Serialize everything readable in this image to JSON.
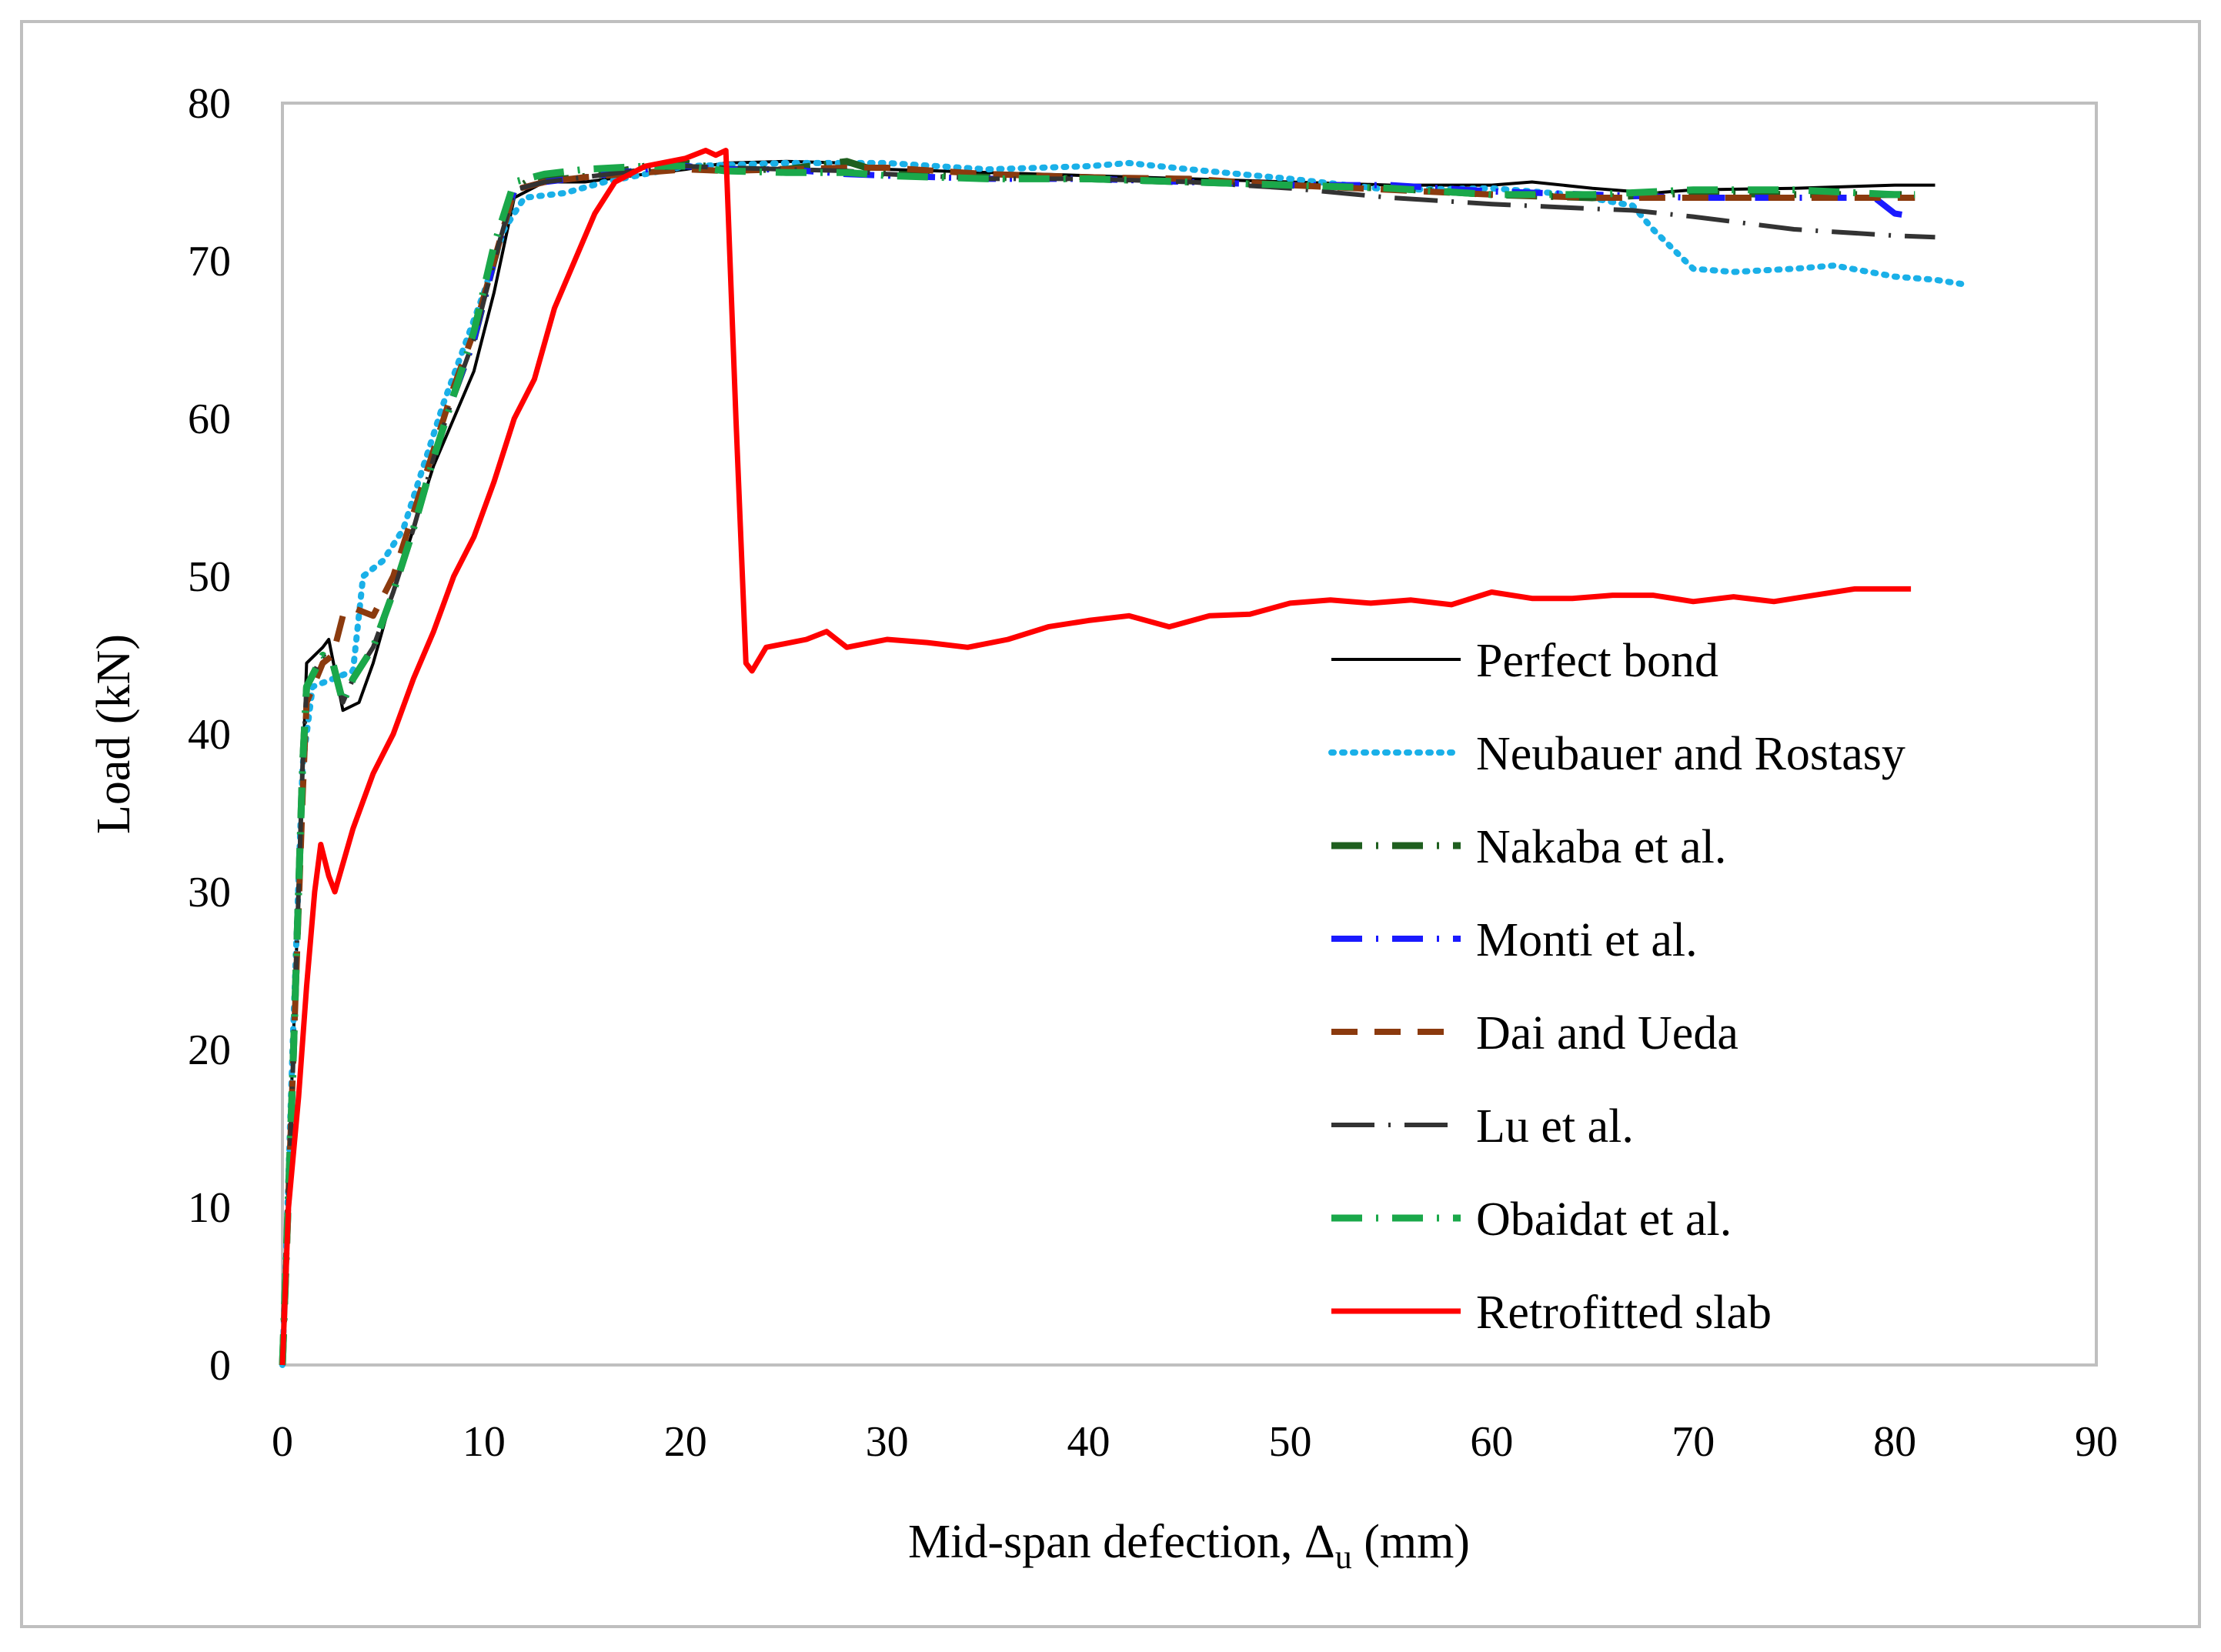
{
  "chart_data": {
    "type": "line",
    "title": "",
    "xlabel": "Mid-span defection, Δ",
    "xlabel_subscript": "u",
    "xlabel_unit": " (mm)",
    "ylabel": "Load (kN)",
    "xlim": [
      0,
      90
    ],
    "ylim": [
      0,
      80
    ],
    "x_ticks": [
      0,
      10,
      20,
      30,
      40,
      50,
      60,
      70,
      80,
      90
    ],
    "y_ticks": [
      0,
      10,
      20,
      30,
      40,
      50,
      60,
      70,
      80
    ],
    "grid": false,
    "legend_position": "right",
    "series": [
      {
        "name": "Perfect bond",
        "color": "#000000",
        "dash": "solid",
        "points": [
          [
            0,
            0
          ],
          [
            0.3,
            12
          ],
          [
            0.8,
            30
          ],
          [
            1.2,
            44.5
          ],
          [
            2,
            45.5
          ],
          [
            2.3,
            46
          ],
          [
            3,
            41.5
          ],
          [
            3.8,
            42
          ],
          [
            4.5,
            44.5
          ],
          [
            5.5,
            49
          ],
          [
            6.5,
            53
          ],
          [
            7.5,
            57
          ],
          [
            8.5,
            60
          ],
          [
            9.5,
            63
          ],
          [
            10.5,
            68
          ],
          [
            11.5,
            74
          ],
          [
            13,
            75
          ],
          [
            15,
            75
          ],
          [
            18,
            75.5
          ],
          [
            20,
            75.8
          ],
          [
            22,
            76.2
          ],
          [
            25,
            76.3
          ],
          [
            28,
            76.2
          ],
          [
            30,
            75.8
          ],
          [
            35,
            75.6
          ],
          [
            40,
            75.4
          ],
          [
            45,
            75.2
          ],
          [
            50,
            75
          ],
          [
            55,
            74.8
          ],
          [
            60,
            74.8
          ],
          [
            62,
            75
          ],
          [
            65,
            74.6
          ],
          [
            68,
            74.3
          ],
          [
            70,
            74.5
          ],
          [
            75,
            74.6
          ],
          [
            80,
            74.8
          ],
          [
            82,
            74.8
          ]
        ]
      },
      {
        "name": "Neubauer and Rostasy",
        "color": "#1ab0e8",
        "dash": "dotted",
        "points": [
          [
            0,
            0
          ],
          [
            0.5,
            20
          ],
          [
            1,
            38
          ],
          [
            1.5,
            43
          ],
          [
            2.5,
            43.5
          ],
          [
            3.5,
            44
          ],
          [
            4,
            50
          ],
          [
            5,
            51
          ],
          [
            6,
            53
          ],
          [
            7,
            57
          ],
          [
            8,
            61
          ],
          [
            9,
            64.5
          ],
          [
            10,
            68
          ],
          [
            11,
            72
          ],
          [
            12,
            74
          ],
          [
            14,
            74.3
          ],
          [
            16,
            75
          ],
          [
            20,
            76
          ],
          [
            25,
            76.2
          ],
          [
            30,
            76.2
          ],
          [
            35,
            75.8
          ],
          [
            40,
            76
          ],
          [
            42,
            76.2
          ],
          [
            45,
            75.8
          ],
          [
            50,
            75.2
          ],
          [
            55,
            74.5
          ],
          [
            60,
            74.6
          ],
          [
            64,
            74.2
          ],
          [
            67,
            73.5
          ],
          [
            68,
            72
          ],
          [
            70,
            69.5
          ],
          [
            72,
            69.3
          ],
          [
            75,
            69.5
          ],
          [
            77,
            69.7
          ],
          [
            80,
            69
          ],
          [
            82,
            68.8
          ],
          [
            83.5,
            68.5
          ]
        ]
      },
      {
        "name": "Nakaba et al.",
        "color": "#1f5f1f",
        "dash": "dashdot",
        "points": [
          [
            0,
            0
          ],
          [
            0.5,
            18
          ],
          [
            1,
            38
          ],
          [
            1.2,
            43
          ],
          [
            2,
            45
          ],
          [
            2.5,
            44.5
          ],
          [
            3,
            42
          ],
          [
            3.5,
            43.5
          ],
          [
            4.5,
            45.5
          ],
          [
            5.5,
            49
          ],
          [
            6.5,
            53
          ],
          [
            7.5,
            57.5
          ],
          [
            8.5,
            61.5
          ],
          [
            9.5,
            65
          ],
          [
            10.5,
            70
          ],
          [
            11.5,
            74.5
          ],
          [
            12.5,
            75.3
          ],
          [
            14,
            75.2
          ],
          [
            16,
            75.5
          ],
          [
            18,
            76
          ],
          [
            20,
            76.2
          ],
          [
            22,
            75.8
          ],
          [
            25,
            75.8
          ],
          [
            28,
            76.3
          ],
          [
            30,
            75.5
          ],
          [
            35,
            75.3
          ],
          [
            40,
            75.2
          ],
          [
            45,
            75
          ],
          [
            50,
            74.8
          ],
          [
            55,
            74.6
          ],
          [
            60,
            74.2
          ],
          [
            65,
            74
          ],
          [
            70,
            74.3
          ],
          [
            75,
            74.2
          ],
          [
            80,
            74.2
          ],
          [
            81,
            74.2
          ]
        ]
      },
      {
        "name": "Monti et al.",
        "color": "#1a1aff",
        "dash": "dashdot",
        "points": [
          [
            0,
            0
          ],
          [
            0.5,
            18
          ],
          [
            1,
            38
          ],
          [
            1.2,
            43
          ],
          [
            2,
            45
          ],
          [
            2.5,
            44.5
          ],
          [
            3,
            42
          ],
          [
            3.5,
            43.5
          ],
          [
            4.5,
            45.5
          ],
          [
            5.5,
            49
          ],
          [
            6.5,
            53
          ],
          [
            7.5,
            57.5
          ],
          [
            8.5,
            61.5
          ],
          [
            9.5,
            65
          ],
          [
            10.5,
            70
          ],
          [
            11.5,
            74.5
          ],
          [
            13,
            75
          ],
          [
            15,
            75.3
          ],
          [
            18,
            75.8
          ],
          [
            20,
            76
          ],
          [
            22,
            75.8
          ],
          [
            25,
            75.8
          ],
          [
            28,
            75.5
          ],
          [
            30,
            75.4
          ],
          [
            35,
            75.2
          ],
          [
            40,
            75.2
          ],
          [
            45,
            75
          ],
          [
            50,
            74.8
          ],
          [
            55,
            74.8
          ],
          [
            60,
            74.4
          ],
          [
            65,
            74.2
          ],
          [
            70,
            74
          ],
          [
            75,
            74
          ],
          [
            79,
            74
          ],
          [
            80,
            73
          ],
          [
            81,
            72.8
          ]
        ]
      },
      {
        "name": "Dai and Ueda",
        "color": "#8b3a0e",
        "dash": "dashed",
        "points": [
          [
            0,
            0
          ],
          [
            0.5,
            18
          ],
          [
            1,
            36
          ],
          [
            1.2,
            42
          ],
          [
            2,
            44.5
          ],
          [
            2.5,
            45
          ],
          [
            3,
            47.5
          ],
          [
            3.5,
            48
          ],
          [
            4.5,
            47.5
          ],
          [
            5.5,
            50
          ],
          [
            6.5,
            54
          ],
          [
            7.5,
            58
          ],
          [
            8.5,
            62
          ],
          [
            9.5,
            65.5
          ],
          [
            10.5,
            70
          ],
          [
            11.5,
            74.5
          ],
          [
            13,
            75
          ],
          [
            15,
            75.3
          ],
          [
            18,
            75.6
          ],
          [
            20,
            75.8
          ],
          [
            22,
            75.7
          ],
          [
            25,
            75.8
          ],
          [
            28,
            75.9
          ],
          [
            30,
            75.9
          ],
          [
            35,
            75.5
          ],
          [
            40,
            75.3
          ],
          [
            45,
            75.2
          ],
          [
            50,
            74.8
          ],
          [
            55,
            74.5
          ],
          [
            60,
            74.2
          ],
          [
            65,
            74
          ],
          [
            70,
            74
          ],
          [
            75,
            74
          ],
          [
            80,
            74
          ],
          [
            81,
            74
          ]
        ]
      },
      {
        "name": "Lu et al.",
        "color": "#333333",
        "dash": "longdashdot",
        "points": [
          [
            0,
            0
          ],
          [
            0.5,
            18
          ],
          [
            1,
            38
          ],
          [
            1.2,
            43
          ],
          [
            2,
            45
          ],
          [
            2.5,
            44.5
          ],
          [
            3,
            42
          ],
          [
            3.5,
            43.5
          ],
          [
            4.5,
            45.5
          ],
          [
            5.5,
            49
          ],
          [
            6.5,
            53
          ],
          [
            7.5,
            57.5
          ],
          [
            8.5,
            61.5
          ],
          [
            9.5,
            65
          ],
          [
            10.5,
            70
          ],
          [
            11.5,
            74.5
          ],
          [
            13,
            75
          ],
          [
            15,
            75.3
          ],
          [
            18,
            75.8
          ],
          [
            20,
            76
          ],
          [
            22,
            75.9
          ],
          [
            25,
            75.8
          ],
          [
            28,
            75.7
          ],
          [
            30,
            75.5
          ],
          [
            35,
            75.2
          ],
          [
            40,
            75.2
          ],
          [
            45,
            75
          ],
          [
            50,
            74.6
          ],
          [
            55,
            74
          ],
          [
            60,
            73.6
          ],
          [
            65,
            73.3
          ],
          [
            67,
            73.2
          ],
          [
            70,
            72.8
          ],
          [
            75,
            72
          ],
          [
            80,
            71.6
          ],
          [
            82,
            71.5
          ]
        ]
      },
      {
        "name": "Obaidat et al.",
        "color": "#1aa84a",
        "dash": "dashdot",
        "points": [
          [
            0,
            0
          ],
          [
            0.5,
            18
          ],
          [
            1,
            38
          ],
          [
            1.2,
            43
          ],
          [
            2,
            45
          ],
          [
            2.5,
            44.5
          ],
          [
            3,
            42
          ],
          [
            3.5,
            43.5
          ],
          [
            4.5,
            45.5
          ],
          [
            5.5,
            49
          ],
          [
            6.5,
            53
          ],
          [
            7.5,
            57.5
          ],
          [
            8.5,
            61.5
          ],
          [
            9.5,
            65.5
          ],
          [
            10.5,
            71
          ],
          [
            11.5,
            75
          ],
          [
            13,
            75.5
          ],
          [
            15,
            75.8
          ],
          [
            18,
            76
          ],
          [
            20,
            76
          ],
          [
            22,
            75.7
          ],
          [
            25,
            75.6
          ],
          [
            28,
            75.6
          ],
          [
            30,
            75.4
          ],
          [
            35,
            75.2
          ],
          [
            40,
            75.2
          ],
          [
            45,
            75
          ],
          [
            50,
            74.8
          ],
          [
            55,
            74.6
          ],
          [
            60,
            74.2
          ],
          [
            65,
            74.2
          ],
          [
            70,
            74.5
          ],
          [
            75,
            74.5
          ],
          [
            80,
            74.2
          ],
          [
            81,
            74.2
          ]
        ]
      },
      {
        "name": "Retrofitted slab",
        "color": "#ff0000",
        "dash": "solid",
        "points": [
          [
            0,
            0
          ],
          [
            0.3,
            10
          ],
          [
            0.8,
            17
          ],
          [
            1.2,
            24
          ],
          [
            1.6,
            30
          ],
          [
            1.9,
            33
          ],
          [
            2.3,
            31
          ],
          [
            2.6,
            30
          ],
          [
            3.5,
            34
          ],
          [
            4.5,
            37.5
          ],
          [
            5.5,
            40
          ],
          [
            6.5,
            43.5
          ],
          [
            7.5,
            46.5
          ],
          [
            8.5,
            50
          ],
          [
            9.5,
            52.5
          ],
          [
            10.5,
            56
          ],
          [
            11.5,
            60
          ],
          [
            12.5,
            62.5
          ],
          [
            13.5,
            67
          ],
          [
            14.5,
            70
          ],
          [
            15.5,
            73
          ],
          [
            16.5,
            75
          ],
          [
            18,
            76
          ],
          [
            20,
            76.5
          ],
          [
            21,
            77
          ],
          [
            21.5,
            76.7
          ],
          [
            22,
            77
          ],
          [
            22.5,
            60
          ],
          [
            23,
            44.5
          ],
          [
            23.3,
            44
          ],
          [
            24,
            45.5
          ],
          [
            26,
            46
          ],
          [
            27,
            46.5
          ],
          [
            28,
            45.5
          ],
          [
            30,
            46
          ],
          [
            32,
            45.8
          ],
          [
            34,
            45.5
          ],
          [
            36,
            46
          ],
          [
            38,
            46.8
          ],
          [
            40,
            47.2
          ],
          [
            42,
            47.5
          ],
          [
            44,
            46.8
          ],
          [
            46,
            47.5
          ],
          [
            48,
            47.6
          ],
          [
            50,
            48.3
          ],
          [
            52,
            48.5
          ],
          [
            54,
            48.3
          ],
          [
            56,
            48.5
          ],
          [
            58,
            48.2
          ],
          [
            60,
            49
          ],
          [
            62,
            48.6
          ],
          [
            64,
            48.6
          ],
          [
            66,
            48.8
          ],
          [
            68,
            48.8
          ],
          [
            70,
            48.4
          ],
          [
            72,
            48.7
          ],
          [
            74,
            48.4
          ],
          [
            76,
            48.8
          ],
          [
            78,
            49.2
          ],
          [
            80,
            49.2
          ],
          [
            80.8,
            49.2
          ]
        ]
      }
    ]
  }
}
